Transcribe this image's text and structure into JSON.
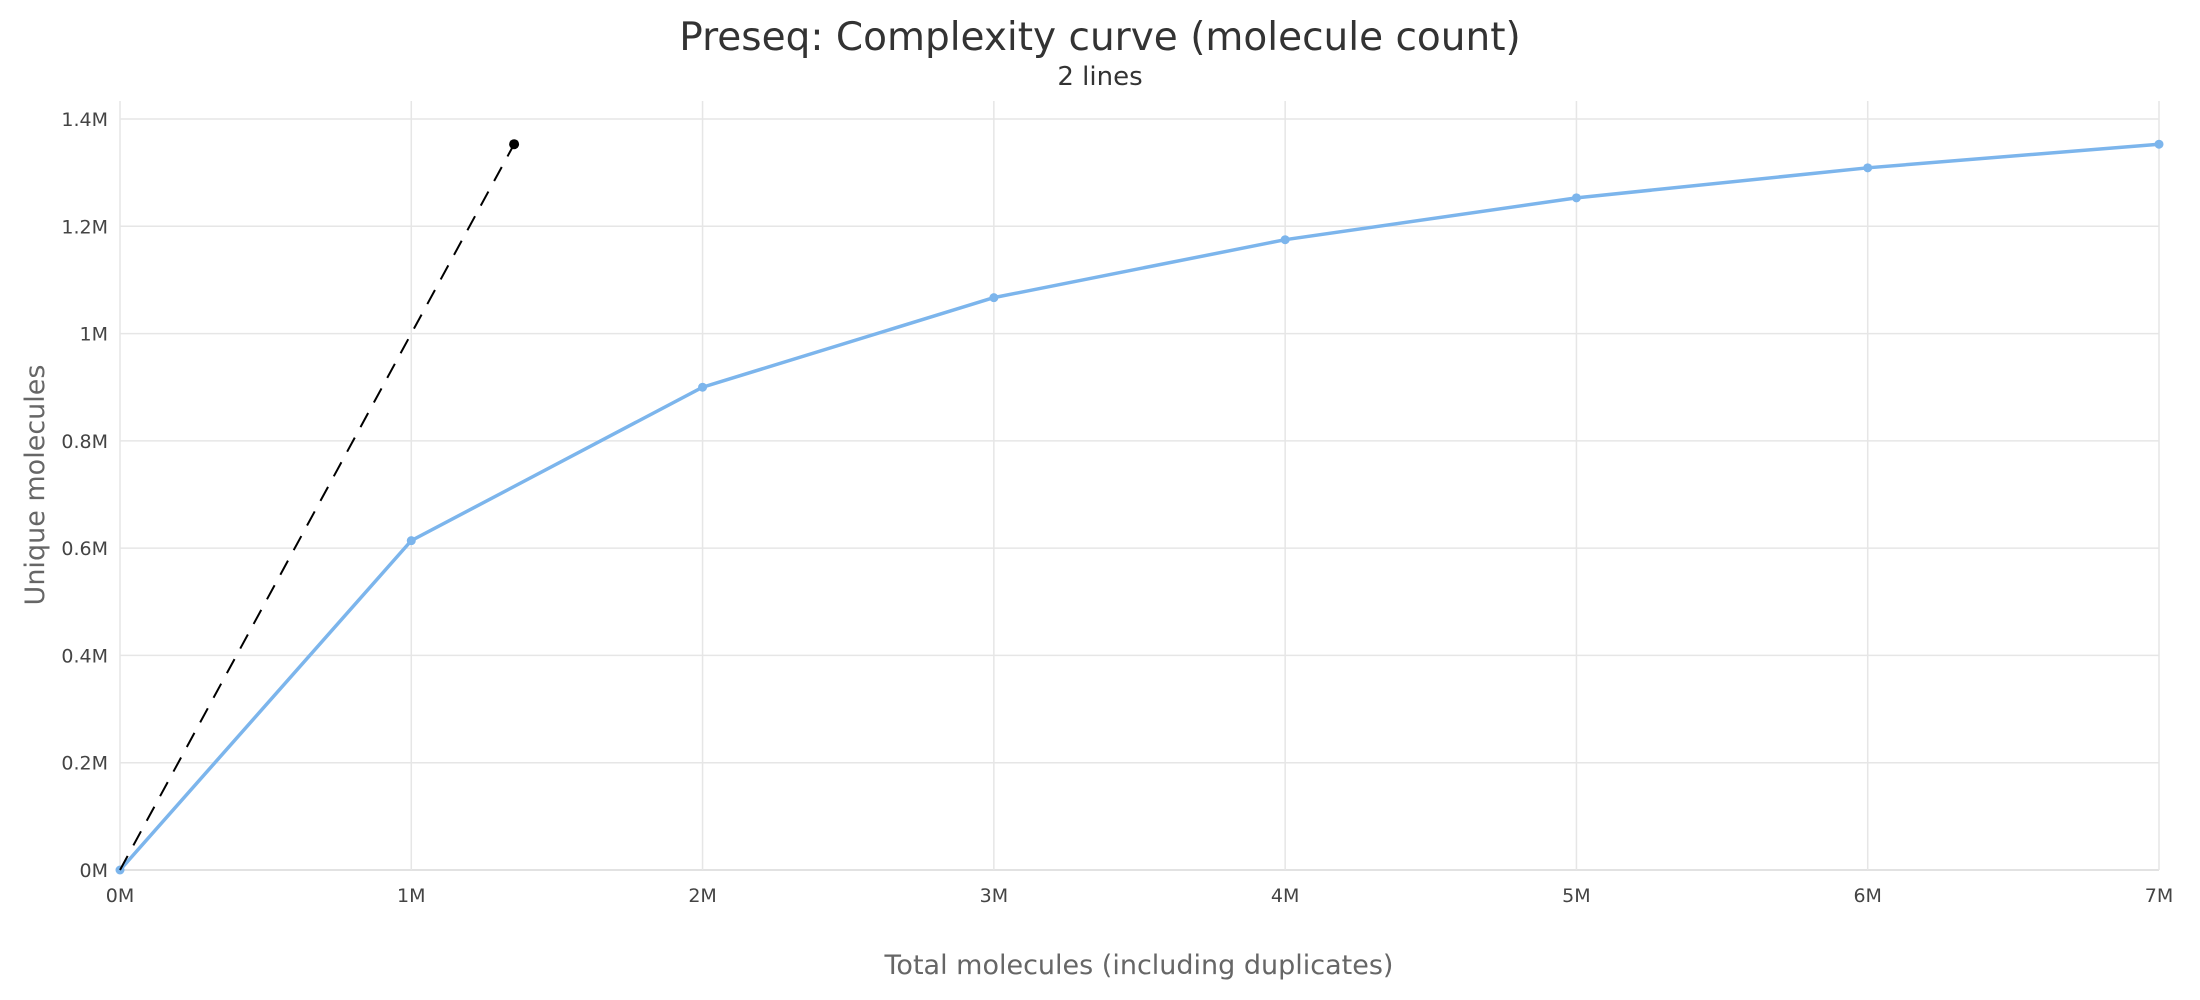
{
  "chart_data": {
    "type": "line",
    "title": "Preseq: Complexity curve (molecule count)",
    "subtitle": "2 lines",
    "xlabel": "Total molecules (including duplicates)",
    "ylabel": "Unique molecules",
    "xlim": [
      0,
      7000000
    ],
    "ylim": [
      0,
      1400000
    ],
    "x_ticks": [
      "0M",
      "1M",
      "2M",
      "3M",
      "4M",
      "5M",
      "6M",
      "7M"
    ],
    "x_tick_values": [
      0,
      1000000,
      2000000,
      3000000,
      4000000,
      5000000,
      6000000,
      7000000
    ],
    "y_ticks": [
      "0M",
      "0.2M",
      "0.4M",
      "0.6M",
      "0.8M",
      "1M",
      "1.2M",
      "1.4M"
    ],
    "y_tick_values": [
      0,
      200000,
      400000,
      600000,
      800000,
      1000000,
      1200000,
      1400000
    ],
    "grid": true,
    "series": [
      {
        "color": "#7cb5ec",
        "style": "solid",
        "markers": true,
        "x": [
          0,
          1000000,
          2000000,
          3000000,
          4000000,
          5000000,
          6000000,
          7000000
        ],
        "y": [
          0,
          614000,
          900000,
          1067000,
          1175000,
          1253000,
          1309000,
          1353000
        ]
      },
      {
        "color": "#000000",
        "style": "dashed",
        "markers": "end",
        "x": [
          0,
          1353000
        ],
        "y": [
          0,
          1353000
        ]
      }
    ]
  }
}
